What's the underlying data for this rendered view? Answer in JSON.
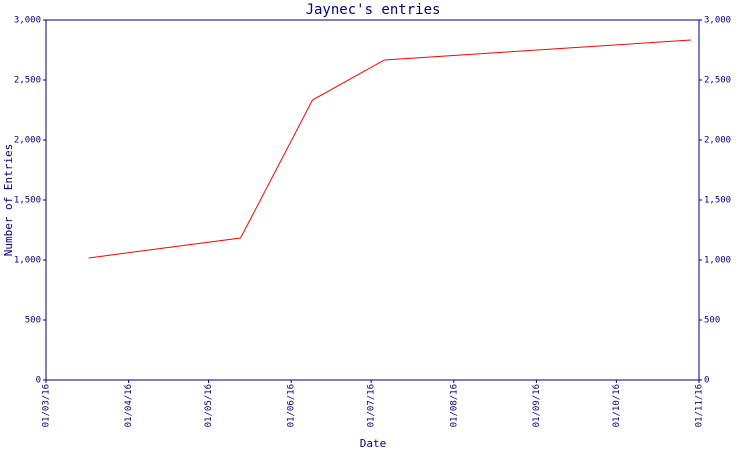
{
  "chart_data": {
    "type": "line",
    "title": "Jaynec's entries",
    "x_label": "Date",
    "y_label": "Number of Entries",
    "x": [
      "2016-03-17",
      "2016-05-13",
      "2016-06-09",
      "2016-07-06",
      "2016-10-29"
    ],
    "series": [
      {
        "name": "Entries",
        "color": "#ff0000",
        "values": [
          1017,
          1183,
          2333,
          2667,
          2833
        ]
      }
    ],
    "xlim": [
      "2016-03-01",
      "2016-11-01"
    ],
    "xticks": [
      {
        "value": "2016-03-01",
        "label": "01/03/16"
      },
      {
        "value": "2016-04-01",
        "label": "01/04/16"
      },
      {
        "value": "2016-05-01",
        "label": "01/05/16"
      },
      {
        "value": "2016-06-01",
        "label": "01/06/16"
      },
      {
        "value": "2016-07-01",
        "label": "01/07/16"
      },
      {
        "value": "2016-08-01",
        "label": "01/08/16"
      },
      {
        "value": "2016-09-01",
        "label": "01/09/16"
      },
      {
        "value": "2016-10-01",
        "label": "01/10/16"
      },
      {
        "value": "2016-11-01",
        "label": "01/11/16"
      }
    ],
    "ylim": [
      0,
      3000
    ],
    "yticks": [
      0,
      500,
      {
        "value": 1000,
        "label": "1,000"
      },
      {
        "value": 1500,
        "label": "1,500"
      },
      {
        "value": 2000,
        "label": "2,000"
      },
      {
        "value": 2500,
        "label": "2,500"
      },
      {
        "value": 3000,
        "label": "3,000"
      }
    ],
    "axis_color": "#000080",
    "grid": false
  }
}
